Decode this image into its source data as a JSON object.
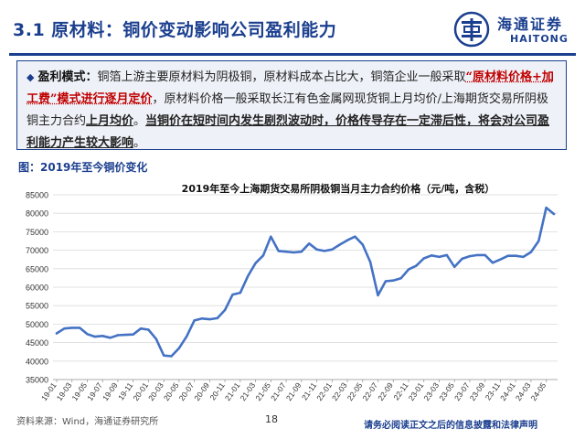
{
  "header": {
    "title": "3.1 原材料：铜价变动影响公司盈利能力",
    "logo_cn": "海通证券",
    "logo_en": "HAITONG"
  },
  "callout": {
    "label": "盈利模式：",
    "seg1": "铜箔上游主要原材料为阴极铜，原材料成本占比大，铜箔企业一般采取",
    "seg2": "“原材料价格+加工费”模式进行逐月定价",
    "seg3": "，原材料价格一般采取长江有色金属网现货铜上月均价/上海期货交易所阴极铜主力合约",
    "seg4": "上月均价",
    "seg5": "。",
    "seg6": "当铜价在短时间内发生剧烈波动时，价格传导存在一定滞后性，将会对公司盈利能力产生较大影响",
    "seg7": "。"
  },
  "figure": {
    "label": "图：2019年至今铜价变化"
  },
  "footer": {
    "source": "资料来源：Wind，海通证券研究所",
    "page": "18",
    "disclaimer": "请务必阅读正文之后的信息披露和法律声明"
  },
  "colors": {
    "brand": "#1b3f8f",
    "line": "#4472c4",
    "grid": "#d9d9d9"
  },
  "chart_data": {
    "type": "line",
    "title": "2019年至今上海期货交易所阴极铜当月主力合约价格（元/吨，含税）",
    "xlabel": "",
    "ylabel": "",
    "ylim": [
      35000,
      85000
    ],
    "yticks": [
      35000,
      40000,
      45000,
      50000,
      55000,
      60000,
      65000,
      70000,
      75000,
      80000,
      85000
    ],
    "grid": "horizontal",
    "series": [
      {
        "name": "",
        "x": [
          "19-01",
          "19-02",
          "19-03",
          "19-04",
          "19-05",
          "19-06",
          "19-07",
          "19-08",
          "19-09",
          "19-10",
          "19-11",
          "19-12",
          "20-01",
          "20-02",
          "20-03",
          "20-04",
          "20-05",
          "20-06",
          "20-07",
          "20-08",
          "20-09",
          "20-10",
          "20-11",
          "20-12",
          "21-01",
          "21-02",
          "21-03",
          "21-04",
          "21-05",
          "21-06",
          "21-07",
          "21-08",
          "21-09",
          "21-10",
          "21-11",
          "21-12",
          "22-01",
          "22-02",
          "22-03",
          "22-04",
          "22-05",
          "22-06",
          "22-07",
          "22-08",
          "22-09",
          "22-10",
          "22-11",
          "22-12",
          "23-01",
          "23-02",
          "23-03",
          "23-04",
          "23-05",
          "23-06",
          "23-07",
          "23-08",
          "23-09",
          "23-10",
          "23-11",
          "23-12",
          "24-01",
          "24-02",
          "24-03",
          "24-04",
          "24-05",
          "24-06"
        ],
        "values": [
          47500,
          48800,
          49000,
          49000,
          47300,
          46600,
          46800,
          46300,
          47000,
          47100,
          47200,
          48800,
          48500,
          46000,
          41500,
          41300,
          43500,
          46700,
          51000,
          51500,
          51300,
          51600,
          53800,
          58000,
          58500,
          63000,
          66500,
          68600,
          73700,
          69800,
          69600,
          69400,
          69600,
          71800,
          70200,
          69800,
          70200,
          71500,
          72700,
          73700,
          71500,
          66800,
          57800,
          61600,
          61800,
          62400,
          64800,
          65800,
          67800,
          68600,
          68200,
          68700,
          65500,
          67700,
          68400,
          68700,
          68700,
          66600,
          67500,
          68500,
          68500,
          68200,
          69500,
          72500,
          81500,
          79800
        ],
        "color": "#4472c4"
      }
    ],
    "tick_labels": [
      "19-01",
      "19-03",
      "19-05",
      "19-07",
      "19-09",
      "19-11",
      "20-01",
      "20-03",
      "20-05",
      "20-07",
      "20-09",
      "20-11",
      "21-01",
      "21-03",
      "21-05",
      "21-07",
      "21-09",
      "21-11",
      "22-01",
      "22-03",
      "22-05",
      "22-07",
      "22-09",
      "22-11",
      "23-01",
      "23-03",
      "23-05",
      "23-07",
      "23-09",
      "23-11",
      "24-01",
      "24-03",
      "24-05"
    ]
  }
}
